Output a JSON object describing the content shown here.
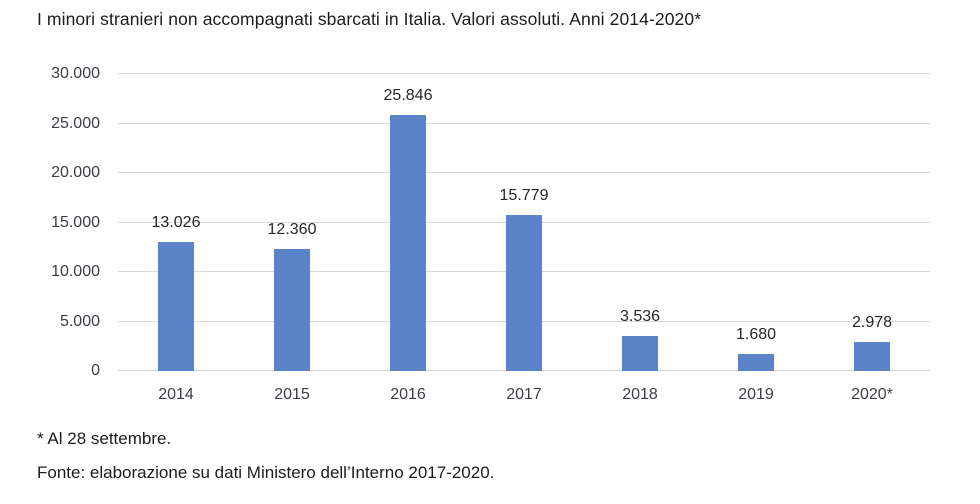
{
  "chart_data": {
    "type": "bar",
    "title": "I minori stranieri non accompagnati sbarcati in Italia. Valori assoluti. Anni 2014-2020*",
    "categories": [
      "2014",
      "2015",
      "2016",
      "2017",
      "2018",
      "2019",
      "2020*"
    ],
    "values": [
      13026,
      12360,
      25846,
      15779,
      3536,
      1680,
      2978
    ],
    "value_labels": [
      "13.026",
      "12.360",
      "25.846",
      "15.779",
      "3.536",
      "1.680",
      "2.978"
    ],
    "xlabel": "",
    "ylabel": "",
    "ylim": [
      0,
      30000
    ],
    "yticks": [
      0,
      5000,
      10000,
      15000,
      20000,
      25000,
      30000
    ],
    "ytick_labels": [
      "0",
      "5.000",
      "10.000",
      "15.000",
      "20.000",
      "25.000",
      "30.000"
    ],
    "grid": true,
    "legend": false,
    "bar_color": "#5A84C7",
    "gridline_color": "#D9D9D9",
    "tick_text_color": "#3d3d46"
  },
  "footnotes": {
    "asterisk": "* Al 28 settembre.",
    "source": "Fonte: elaborazione su dati Ministero dell’Interno 2017-2020."
  }
}
